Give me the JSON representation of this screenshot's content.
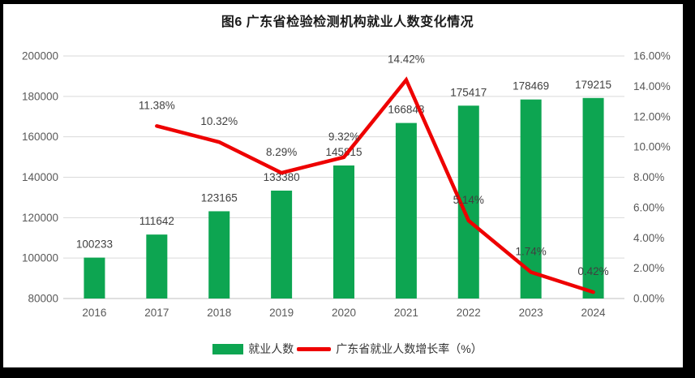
{
  "page": {
    "title": "图6  广东省检验检测机构就业人数变化情况"
  },
  "colors": {
    "bar": "#0da551",
    "line": "#ee0000",
    "grid": "#d9d9d9",
    "axis_line": "#bfbfbf",
    "tick_text": "#595959",
    "data_label_text": "#404040",
    "title_text": "#1a1a1a",
    "frame": "#000000",
    "background": "#ffffff"
  },
  "legend": {
    "items": [
      {
        "label": "就业人数",
        "type": "bar",
        "color": "#0da551"
      },
      {
        "label": "广东省就业人数增长率（%）",
        "type": "line",
        "color": "#ee0000"
      }
    ]
  },
  "chart_data": {
    "type": "bar",
    "subtype": "bar-line-combo",
    "title": "图6  广东省检验检测机构就业人数变化情况",
    "categories": [
      "2016",
      "2017",
      "2018",
      "2019",
      "2020",
      "2021",
      "2022",
      "2023",
      "2024"
    ],
    "series": [
      {
        "name": "就业人数",
        "type": "bar",
        "axis": "left",
        "color": "#0da551",
        "values": [
          100233,
          111642,
          123165,
          133380,
          145815,
          166848,
          175417,
          178469,
          179215
        ]
      },
      {
        "name": "广东省就业人数增长率（%）",
        "type": "line",
        "axis": "right",
        "color": "#ee0000",
        "values": [
          null,
          11.38,
          10.32,
          8.29,
          9.32,
          14.42,
          5.14,
          1.74,
          0.42
        ],
        "label_suffix": "%"
      }
    ],
    "left_axis": {
      "min": 80000,
      "max": 200000,
      "step": 20000
    },
    "right_axis": {
      "min": 0,
      "max": 16,
      "step": 2,
      "decimals": 2,
      "suffix": "%"
    },
    "grid": true,
    "legend_position": "bottom",
    "xlabel": "",
    "ylabel": ""
  }
}
